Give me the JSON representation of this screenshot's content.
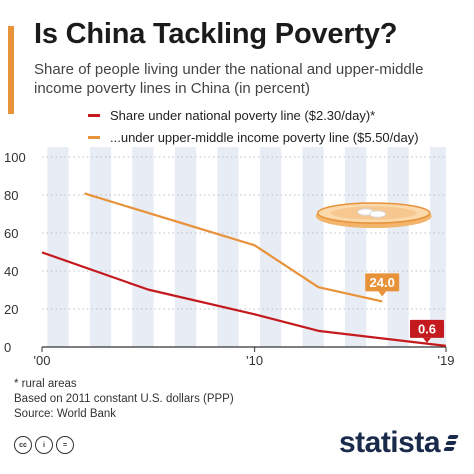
{
  "header": {
    "title": "Is China Tackling Poverty?",
    "subtitle": "Share of people living under the national and upper-middle income poverty lines in China (in percent)"
  },
  "legend": {
    "national": "Share under national poverty line ($2.30/day)*",
    "upper": "...under upper-middle income poverty line ($5.50/day)"
  },
  "footer": {
    "note1": "* rural areas",
    "note2": "Based on 2011 constant U.S. dollars (PPP)",
    "source": "Source: World Bank",
    "brand": "statista"
  },
  "colors": {
    "national": "#c41a1f",
    "upper": "#e8923a",
    "band": "#e8edf5",
    "axis": "#333333"
  },
  "icons": [
    "creative-commons-icon",
    "attribution-icon",
    "no-derivatives-icon",
    "coin-plate-icon"
  ],
  "chart_data": {
    "type": "line",
    "x_ticks": [
      "'00",
      "'10",
      "'19"
    ],
    "y_ticks": [
      0,
      20,
      40,
      60,
      80,
      100
    ],
    "ylim": [
      0,
      100
    ],
    "xlim": [
      2000,
      2019
    ],
    "grid": "vertical bands",
    "series": [
      {
        "name": "Share under national poverty line ($2.30/day)*",
        "color": "#c41a1f",
        "x": [
          2000,
          2005,
          2010,
          2013,
          2019
        ],
        "values": [
          49.8,
          30.2,
          17.2,
          8.5,
          0.6
        ],
        "end_label": "0.6"
      },
      {
        "name": "...under upper-middle income poverty line ($5.50/day)",
        "color": "#e8923a",
        "x": [
          2002,
          2010,
          2013,
          2016
        ],
        "values": [
          80.8,
          53.5,
          31.5,
          24.0
        ],
        "end_label": "24.0"
      }
    ]
  }
}
